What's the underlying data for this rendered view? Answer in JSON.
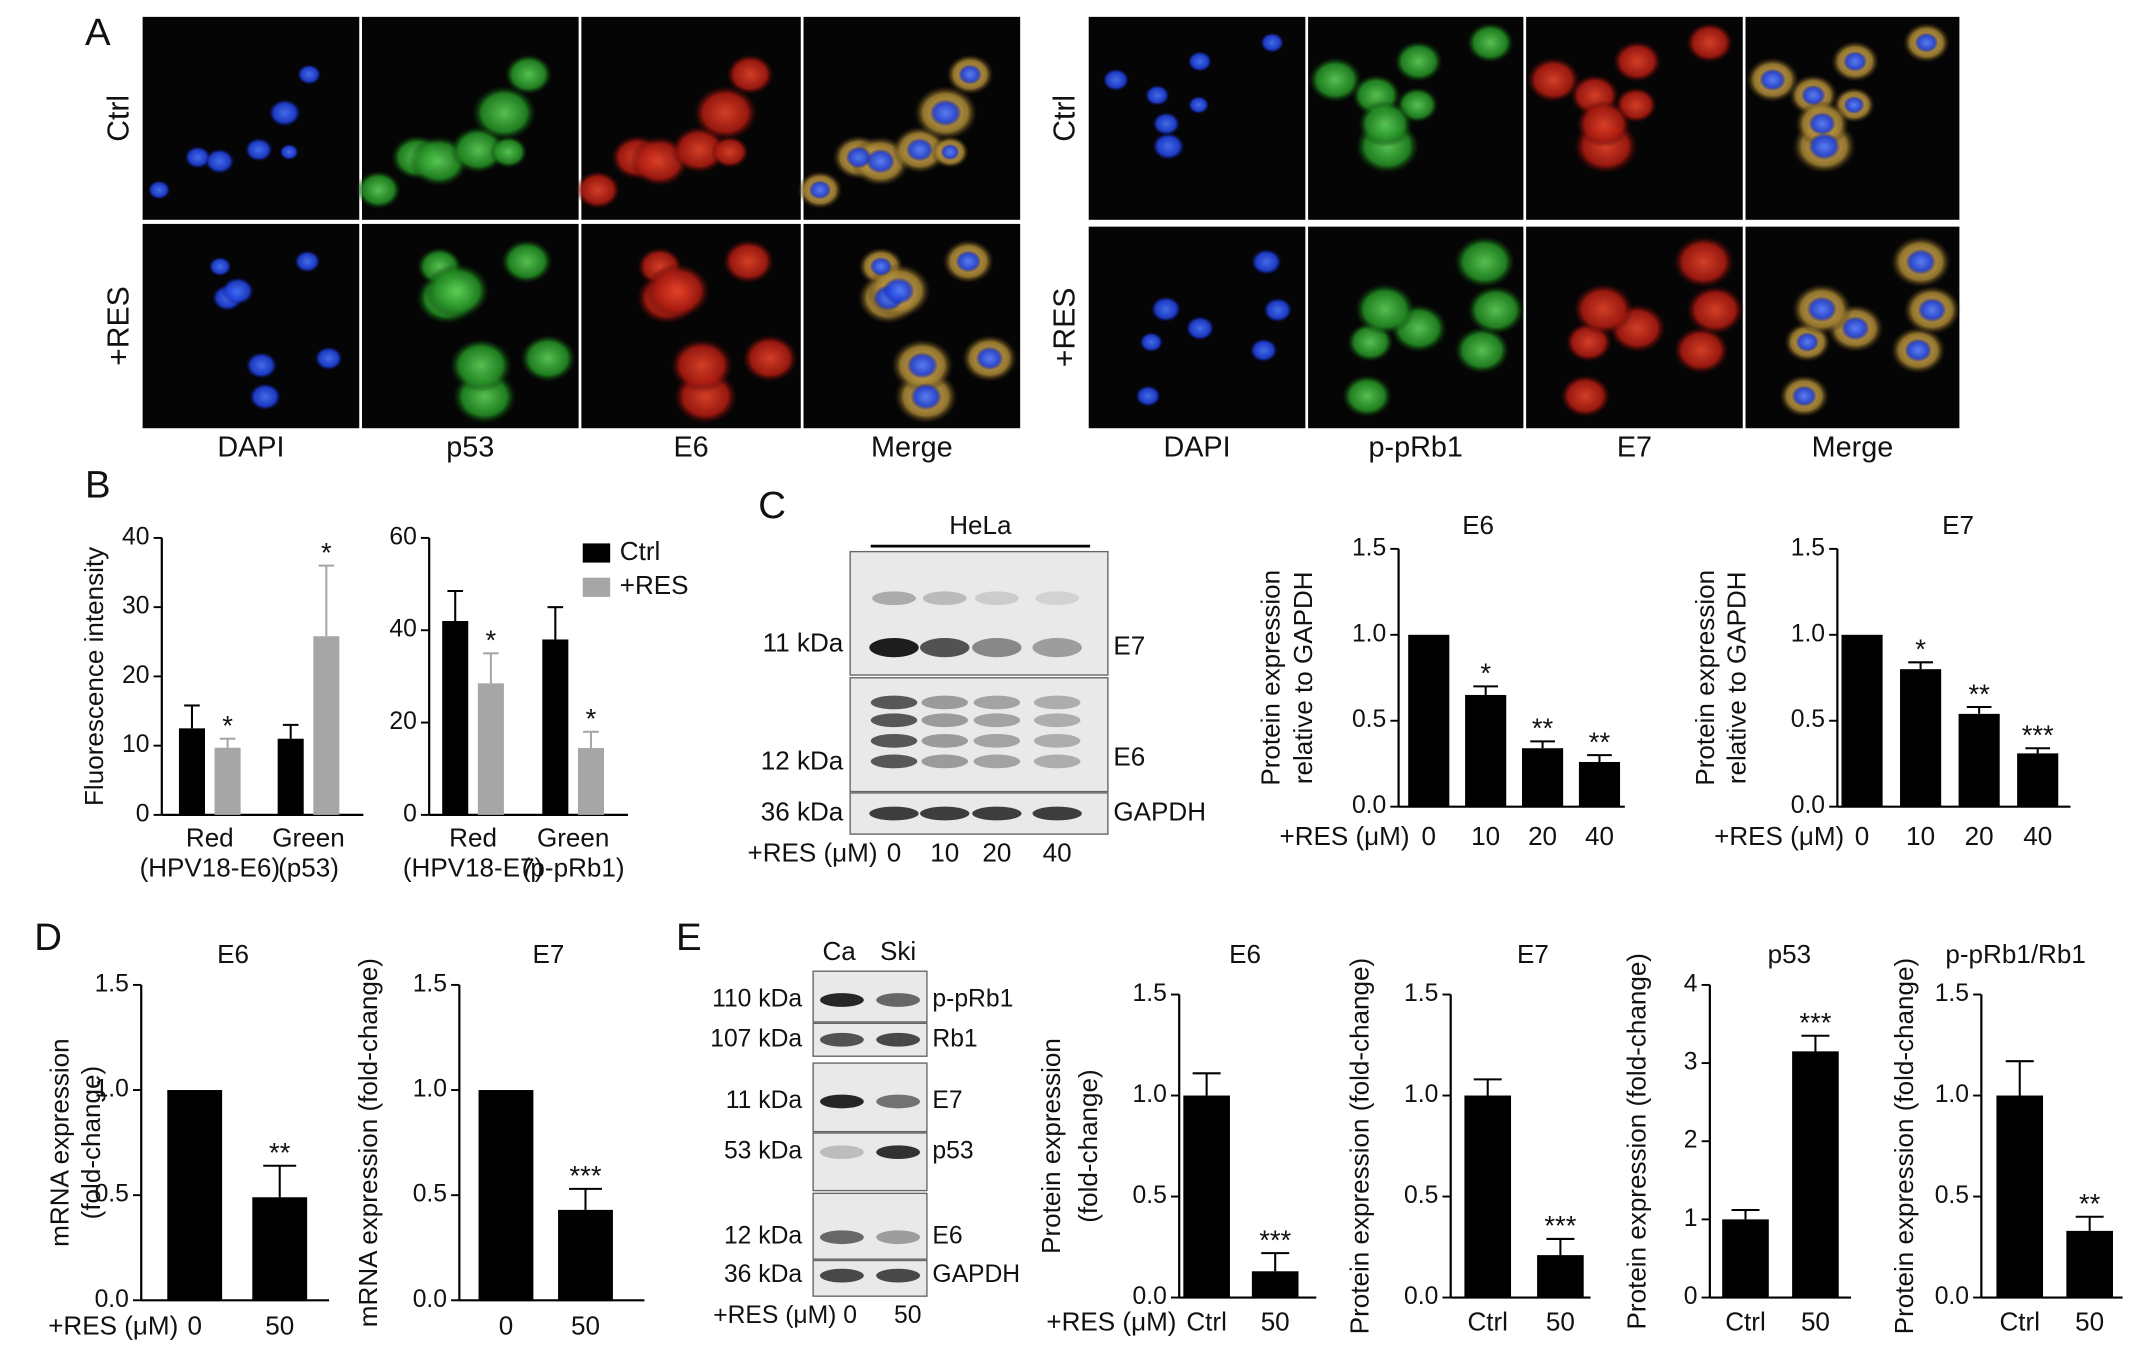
{
  "figure": {
    "panel_labels": [
      "A",
      "B",
      "C",
      "D",
      "E"
    ],
    "microscopy": [
      {
        "row_labels": [
          "Ctrl",
          "+RES"
        ],
        "columns": [
          "DAPI",
          "p53",
          "E6",
          "Merge"
        ]
      },
      {
        "row_labels": [
          "Ctrl",
          "+RES"
        ],
        "columns": [
          "DAPI",
          "p-pRb1",
          "E7",
          "Merge"
        ]
      }
    ],
    "blot_c": {
      "title": "HeLa",
      "mw": [
        "11 kDa",
        "12 kDa",
        "36 kDa"
      ],
      "proteins": [
        "E7",
        "E6",
        "GAPDH"
      ],
      "x_label": "+RES (μM)",
      "lanes": [
        "0",
        "10",
        "20",
        "40"
      ]
    },
    "blot_e": {
      "lanes": [
        "Ca",
        "Ski"
      ],
      "mw": [
        "110 kDa",
        "107 kDa",
        "11 kDa",
        "53 kDa",
        "12 kDa",
        "36 kDa"
      ],
      "proteins": [
        "p-pRb1",
        "Rb1",
        "E7",
        "p53",
        "E6",
        "GAPDH"
      ],
      "x_label": "+RES (μM)",
      "doses": [
        "0",
        "50"
      ]
    }
  },
  "chart_data": [
    {
      "type": "bar",
      "ylabel": [
        "Fluorescence intensity"
      ],
      "categories": [
        "Red",
        "Green"
      ],
      "category_sublabels": [
        "(HPV18-E6)",
        "(p53)"
      ],
      "series": [
        {
          "color": "#000000",
          "values": [
            12.5,
            11
          ],
          "errors": [
            3.3,
            2
          ],
          "significance": [
            null,
            null
          ]
        },
        {
          "color": "#a6a6a6",
          "values": [
            9.7,
            25.8
          ],
          "errors": [
            1.3,
            10.2
          ],
          "significance": [
            "*",
            "*"
          ]
        }
      ],
      "ylim": [
        0,
        40
      ],
      "yticks": [
        0,
        10,
        20,
        30,
        40
      ]
    },
    {
      "type": "bar",
      "categories": [
        "Red",
        "Green"
      ],
      "category_sublabels": [
        "(HPV18-E7)",
        "(p-pRb1)"
      ],
      "series": [
        {
          "name": "Ctrl",
          "color": "#000000",
          "values": [
            42,
            38
          ],
          "errors": [
            6.5,
            7
          ],
          "significance": [
            null,
            null
          ]
        },
        {
          "name": "+RES",
          "color": "#a6a6a6",
          "values": [
            28.5,
            14.5
          ],
          "errors": [
            6.5,
            3.5
          ],
          "significance": [
            "*",
            "*"
          ]
        }
      ],
      "ylim": [
        0,
        60
      ],
      "yticks": [
        0,
        20,
        40,
        60
      ],
      "legend": "upper right"
    },
    {
      "type": "bar",
      "title": "E6",
      "ylabel": [
        "Protein expression",
        "relative to GAPDH"
      ],
      "xlabel": "+RES (μM)",
      "categories": [
        "0",
        "10",
        "20",
        "40"
      ],
      "series": [
        {
          "color": "#000000",
          "values": [
            1,
            0.65,
            0.34,
            0.26
          ],
          "errors": [
            null,
            0.05,
            0.04,
            0.04
          ],
          "significance": [
            null,
            "*",
            "**",
            "**"
          ]
        }
      ],
      "ylim": [
        0,
        1.5
      ],
      "yticks": [
        {
          "value": 0,
          "label": "0.0"
        },
        0.5,
        {
          "value": 1,
          "label": "1.0"
        },
        1.5
      ]
    },
    {
      "type": "bar",
      "title": "E7",
      "ylabel": [
        "Protein expression",
        "relative to GAPDH"
      ],
      "xlabel": "+RES (μM)",
      "categories": [
        "0",
        "10",
        "20",
        "40"
      ],
      "series": [
        {
          "color": "#000000",
          "values": [
            1,
            0.8,
            0.54,
            0.31
          ],
          "errors": [
            null,
            0.04,
            0.04,
            0.03
          ],
          "significance": [
            null,
            "*",
            "**",
            "***"
          ]
        }
      ],
      "ylim": [
        0,
        1.5
      ],
      "yticks": [
        {
          "value": 0,
          "label": "0.0"
        },
        0.5,
        {
          "value": 1,
          "label": "1.0"
        },
        1.5
      ]
    },
    {
      "type": "bar",
      "title": "E6",
      "ylabel": [
        "mRNA expression",
        "(fold-change)"
      ],
      "xlabel": "+RES (μM)",
      "categories": [
        "0",
        "50"
      ],
      "series": [
        {
          "color": "#000000",
          "values": [
            1,
            0.49
          ],
          "errors": [
            null,
            0.15
          ],
          "significance": [
            null,
            "**"
          ]
        }
      ],
      "ylim": [
        0,
        1.5
      ],
      "yticks": [
        {
          "value": 0,
          "label": "0.0"
        },
        0.5,
        {
          "value": 1,
          "label": "1.0"
        },
        1.5
      ]
    },
    {
      "type": "bar",
      "title": "E7",
      "ylabel": [
        "mRNA expression (fold-change)"
      ],
      "categories": [
        "0",
        "50"
      ],
      "series": [
        {
          "color": "#000000",
          "values": [
            1,
            0.43
          ],
          "errors": [
            null,
            0.1
          ],
          "significance": [
            null,
            "***"
          ]
        }
      ],
      "ylim": [
        0,
        1.5
      ],
      "yticks": [
        {
          "value": 0,
          "label": "0.0"
        },
        0.5,
        {
          "value": 1,
          "label": "1.0"
        },
        1.5
      ]
    },
    {
      "type": "bar",
      "title": "E6",
      "ylabel": [
        "Protein expression",
        "(fold-change)"
      ],
      "xlabel": "+RES (μM)",
      "categories": [
        "Ctrl",
        "50"
      ],
      "series": [
        {
          "color": "#000000",
          "values": [
            1,
            0.13
          ],
          "errors": [
            0.11,
            0.09
          ],
          "significance": [
            null,
            "***"
          ]
        }
      ],
      "ylim": [
        0,
        1.5
      ],
      "yticks": [
        {
          "value": 0,
          "label": "0.0"
        },
        0.5,
        {
          "value": 1,
          "label": "1.0"
        },
        1.5
      ]
    },
    {
      "type": "bar",
      "title": "E7",
      "ylabel": [
        "Protein expression (fold-change)"
      ],
      "categories": [
        "Ctrl",
        "50"
      ],
      "series": [
        {
          "color": "#000000",
          "values": [
            1,
            0.21
          ],
          "errors": [
            0.08,
            0.08
          ],
          "significance": [
            null,
            "***"
          ]
        }
      ],
      "ylim": [
        0,
        1.5
      ],
      "yticks": [
        {
          "value": 0,
          "label": "0.0"
        },
        0.5,
        {
          "value": 1,
          "label": "1.0"
        },
        1.5
      ]
    },
    {
      "type": "bar",
      "title": "p53",
      "ylabel": [
        "Protein expression (fold-change)"
      ],
      "categories": [
        "Ctrl",
        "50"
      ],
      "series": [
        {
          "color": "#000000",
          "values": [
            1,
            3.15
          ],
          "errors": [
            0.12,
            0.2
          ],
          "significance": [
            null,
            "***"
          ]
        }
      ],
      "ylim": [
        0,
        4
      ],
      "yticks": [
        0,
        1,
        2,
        3,
        4
      ]
    },
    {
      "type": "bar",
      "title": "p-pRb1/Rb1",
      "ylabel": [
        "Protein expression (fold-change)"
      ],
      "categories": [
        "Ctrl",
        "50"
      ],
      "series": [
        {
          "color": "#000000",
          "values": [
            1,
            0.33
          ],
          "errors": [
            0.17,
            0.07
          ],
          "significance": [
            null,
            "**"
          ]
        }
      ],
      "ylim": [
        0,
        1.5
      ],
      "yticks": [
        {
          "value": 0,
          "label": "0.0"
        },
        0.5,
        {
          "value": 1,
          "label": "1.0"
        },
        1.5
      ]
    }
  ]
}
